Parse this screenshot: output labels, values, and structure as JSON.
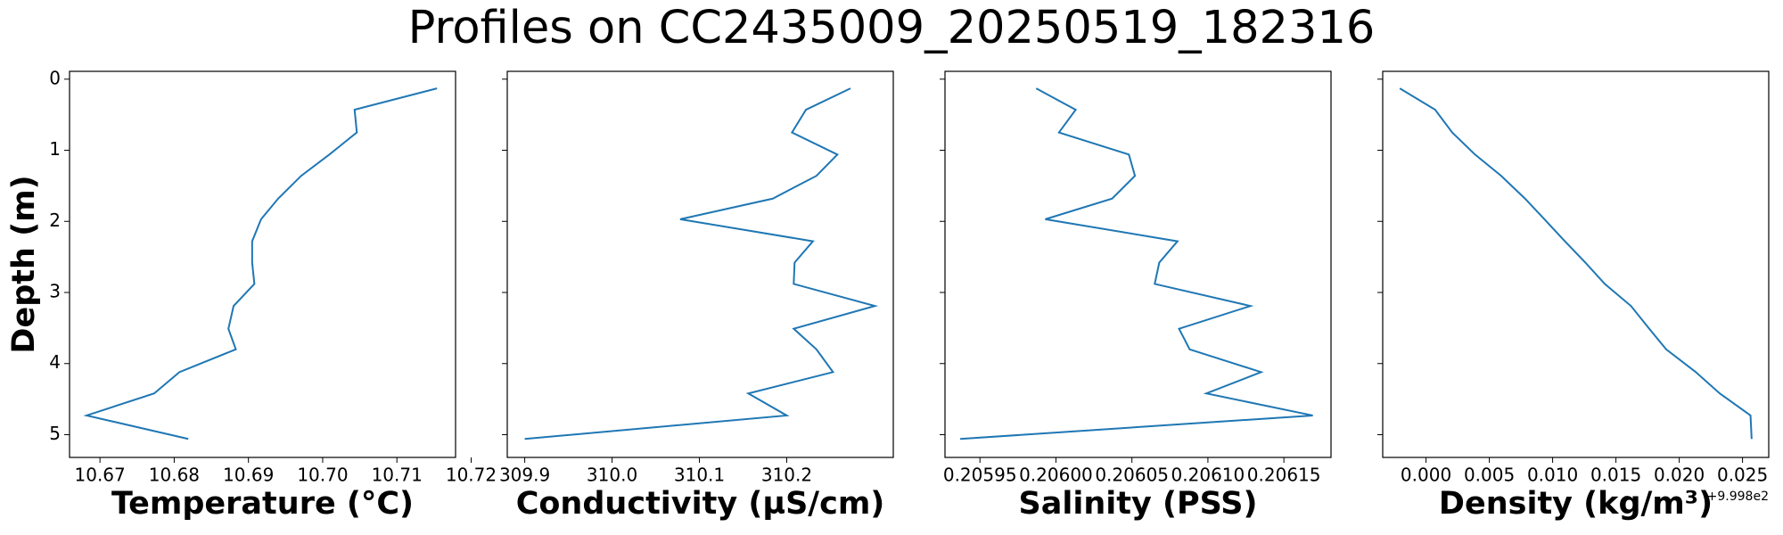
{
  "title": "Profiles on CC2435009_20250519_182316",
  "chart_data": [
    {
      "type": "line",
      "xlabel": "Temperature (°C)",
      "ylabel": "Depth (m)",
      "color": "#1f77b4",
      "values": [
        10.7154,
        10.7043,
        10.7046,
        10.7009,
        10.6971,
        10.694,
        10.6917,
        10.6905,
        10.6905,
        10.6908,
        10.688,
        10.6873,
        10.6883,
        10.6807,
        10.6773,
        10.6682,
        10.6819
      ],
      "depth": [
        0.13,
        0.43,
        0.75,
        1.06,
        1.36,
        1.68,
        1.97,
        2.28,
        2.58,
        2.88,
        3.19,
        3.51,
        3.8,
        4.12,
        4.42,
        4.73,
        5.06
      ],
      "xlim": [
        10.6659,
        10.7179
      ],
      "xticks": [
        10.67,
        10.68,
        10.69,
        {
          "value": 10.7,
          "label": "10.70"
        },
        10.71,
        10.72
      ],
      "ylim": [
        -0.11,
        5.32
      ],
      "y_inverted": true,
      "yticks": [
        0,
        1,
        2,
        3,
        4,
        5
      ]
    },
    {
      "type": "line",
      "xlabel": "Conductivity (µS/cm)",
      "color": "#1f77b4",
      "values": [
        310.273,
        310.222,
        310.206,
        310.258,
        310.234,
        310.184,
        310.078,
        310.23,
        310.209,
        310.208,
        310.301,
        310.208,
        310.234,
        310.253,
        310.156,
        310.2,
        309.9
      ],
      "depth": [
        0.13,
        0.43,
        0.75,
        1.06,
        1.36,
        1.68,
        1.97,
        2.28,
        2.58,
        2.88,
        3.19,
        3.51,
        3.8,
        4.12,
        4.42,
        4.73,
        5.06
      ],
      "xlim": [
        309.88,
        310.322
      ],
      "xticks": [
        309.9,
        {
          "value": 310.0,
          "label": "310.0"
        },
        310.1,
        310.2
      ],
      "ylim": [
        -0.11,
        5.32
      ],
      "y_inverted": true,
      "yticks": [
        0,
        1,
        2,
        3,
        4,
        5
      ]
    },
    {
      "type": "line",
      "xlabel": "Salinity (PSS)",
      "color": "#1f77b4",
      "values": [
        0.205987,
        0.206013,
        0.206002,
        0.206048,
        0.206052,
        0.206037,
        0.205993,
        0.20608,
        0.206068,
        0.206065,
        0.206128,
        0.206081,
        0.206088,
        0.206135,
        0.206099,
        0.206169,
        0.205937
      ],
      "depth": [
        0.13,
        0.43,
        0.75,
        1.06,
        1.36,
        1.68,
        1.97,
        2.28,
        2.58,
        2.88,
        3.19,
        3.51,
        3.8,
        4.12,
        4.42,
        4.73,
        5.06
      ],
      "xlim": [
        0.205927,
        0.206181
      ],
      "xticks": [
        {
          "value": 0.20595,
          "label": "0.20595"
        },
        {
          "value": 0.206,
          "label": "0.20600"
        },
        {
          "value": 0.20605,
          "label": "0.20605"
        },
        {
          "value": 0.2061,
          "label": "0.20610"
        },
        {
          "value": 0.20615,
          "label": "0.20615"
        }
      ],
      "ylim": [
        -0.11,
        5.32
      ],
      "y_inverted": true,
      "yticks": [
        0,
        1,
        2,
        3,
        4,
        5
      ]
    },
    {
      "type": "line",
      "xlabel": "Density (kg/m³)",
      "offset_text": "+9.998e2",
      "color": "#1f77b4",
      "values": [
        -0.00207,
        0.00072,
        0.00207,
        0.00387,
        0.00594,
        0.00782,
        0.00935,
        0.01097,
        0.01259,
        0.01412,
        0.01619,
        0.01763,
        0.01897,
        0.02131,
        0.0232,
        0.02563,
        0.02572
      ],
      "depth": [
        0.13,
        0.43,
        0.75,
        1.06,
        1.36,
        1.68,
        1.97,
        2.28,
        2.58,
        2.88,
        3.19,
        3.51,
        3.8,
        4.12,
        4.42,
        4.73,
        5.06
      ],
      "xlim": [
        -0.00342,
        0.02707
      ],
      "xticks": [
        {
          "value": 0.0,
          "label": "0.000"
        },
        {
          "value": 0.005,
          "label": "0.005"
        },
        {
          "value": 0.01,
          "label": "0.010"
        },
        {
          "value": 0.015,
          "label": "0.015"
        },
        {
          "value": 0.02,
          "label": "0.020"
        },
        {
          "value": 0.025,
          "label": "0.025"
        }
      ],
      "ylim": [
        -0.11,
        5.32
      ],
      "y_inverted": true,
      "yticks": [
        0,
        1,
        2,
        3,
        4,
        5
      ]
    }
  ]
}
